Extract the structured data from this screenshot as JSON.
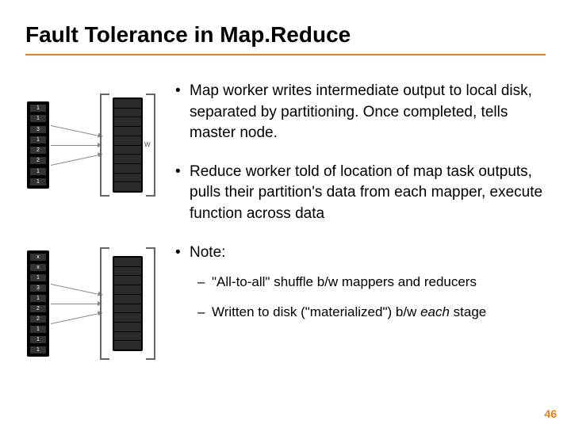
{
  "title": "Fault Tolerance in Map.Reduce",
  "divider_color": "#e67e22",
  "page_number": "46",
  "diagram": {
    "top_block_cells": [
      "1",
      "1",
      "3",
      "1",
      "2",
      "2",
      "1",
      "1"
    ],
    "bottom_block_cells": [
      "x",
      "x",
      "1",
      "3",
      "1",
      "2",
      "2",
      "1",
      "1",
      "1"
    ],
    "worker_label": "W",
    "worker_slots": 10,
    "arrows": 3
  },
  "bullets": [
    {
      "marker": "•",
      "text": "Map worker writes intermediate output to local disk, separated by partitioning. Once completed, tells master node."
    },
    {
      "marker": "•",
      "text": "Reduce worker told of location of map task outputs, pulls their partition's data from each mapper, execute function across data"
    },
    {
      "marker": "•",
      "text": "Note:",
      "subitems": [
        {
          "marker": "–",
          "text": "\"All-to-all\" shuffle b/w mappers and reducers"
        },
        {
          "marker": "–",
          "html": "Written to disk (\"materialized\") b/w <span class=\"italic\">each</span> stage"
        }
      ]
    }
  ]
}
